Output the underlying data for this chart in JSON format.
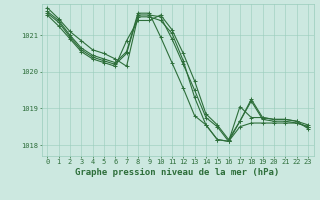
{
  "title": "Graphe pression niveau de la mer (hPa)",
  "xlabel_ticks": [
    0,
    1,
    2,
    3,
    4,
    5,
    6,
    7,
    8,
    9,
    10,
    11,
    12,
    13,
    14,
    15,
    16,
    17,
    18,
    19,
    20,
    21,
    22,
    23
  ],
  "ylim": [
    1017.7,
    1021.85
  ],
  "yticks": [
    1018,
    1019,
    1020,
    1021
  ],
  "xlim": [
    -0.5,
    23.5
  ],
  "background_color": "#cce8e0",
  "grid_color": "#99ccbb",
  "line_color": "#2d6e3a",
  "label_color": "#2d6e3a",
  "lines": [
    [
      1021.75,
      1021.45,
      1021.1,
      1020.85,
      1020.6,
      1020.5,
      1020.35,
      1020.15,
      1021.5,
      1021.5,
      1021.4,
      1021.05,
      1020.3,
      1019.3,
      1018.55,
      1018.15,
      1018.1,
      1018.5,
      1018.6,
      1018.6,
      1018.6,
      1018.6,
      1018.6,
      1018.5
    ],
    [
      1021.65,
      1021.4,
      1021.0,
      1020.65,
      1020.45,
      1020.35,
      1020.25,
      1020.55,
      1021.6,
      1021.6,
      1020.95,
      1020.25,
      1019.55,
      1018.8,
      1018.55,
      1018.15,
      1018.1,
      1019.05,
      1018.75,
      1018.75,
      1018.7,
      1018.7,
      1018.65,
      1018.55
    ],
    [
      1021.6,
      1021.35,
      1020.95,
      1020.6,
      1020.4,
      1020.3,
      1020.2,
      1020.5,
      1021.55,
      1021.55,
      1021.5,
      1020.9,
      1020.2,
      1019.5,
      1018.75,
      1018.5,
      1018.1,
      1018.65,
      1019.2,
      1018.7,
      1018.65,
      1018.65,
      1018.6,
      1018.5
    ],
    [
      1021.55,
      1021.25,
      1020.9,
      1020.55,
      1020.35,
      1020.25,
      1020.15,
      1020.85,
      1021.4,
      1021.4,
      1021.55,
      1021.15,
      1020.5,
      1019.75,
      1018.85,
      1018.55,
      1018.15,
      1018.65,
      1019.25,
      1018.75,
      1018.7,
      1018.7,
      1018.65,
      1018.45
    ]
  ],
  "marker": "+",
  "markersize": 3,
  "linewidth": 0.8,
  "title_fontsize": 6.5,
  "tick_fontsize": 5.0,
  "figsize": [
    3.2,
    2.0
  ],
  "dpi": 100
}
